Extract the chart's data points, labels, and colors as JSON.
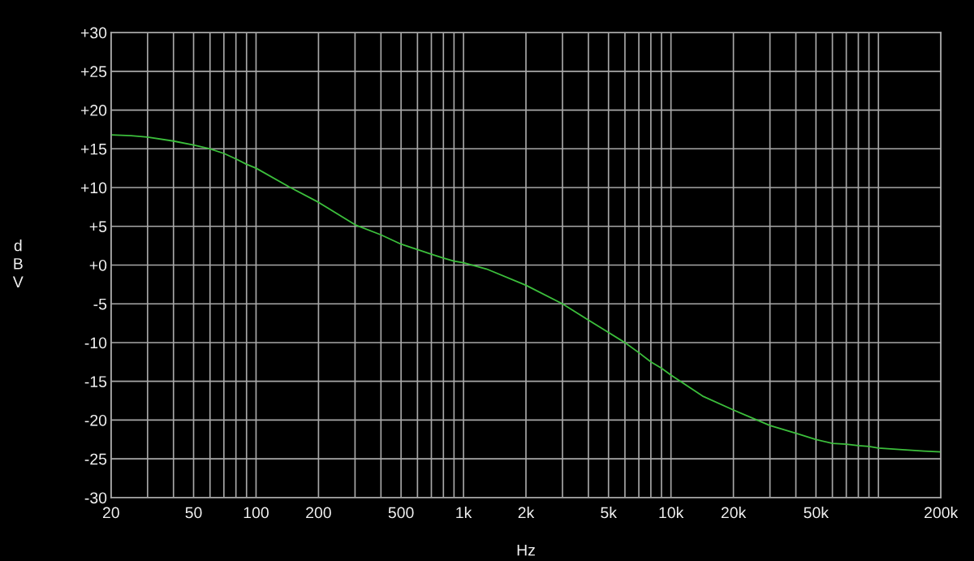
{
  "chart_data": {
    "type": "line",
    "xlabel": "Hz",
    "ylabel": "dBV",
    "log": "x",
    "grid": true,
    "line_style": "solid",
    "xlim": [
      20,
      200000
    ],
    "ylim": [
      -30,
      30
    ],
    "xticks": [
      20,
      {
        "value": 30,
        "label": null
      },
      {
        "value": 40,
        "label": null
      },
      50,
      {
        "value": 60,
        "label": null
      },
      {
        "value": 70,
        "label": null
      },
      {
        "value": 80,
        "label": null
      },
      {
        "value": 90,
        "label": null
      },
      100,
      200,
      {
        "value": 300,
        "label": null
      },
      {
        "value": 400,
        "label": null
      },
      500,
      {
        "value": 600,
        "label": null
      },
      {
        "value": 700,
        "label": null
      },
      {
        "value": 800,
        "label": null
      },
      {
        "value": 900,
        "label": null
      },
      {
        "value": 1000,
        "label": "1k"
      },
      {
        "value": 2000,
        "label": "2k"
      },
      {
        "value": 3000,
        "label": null
      },
      {
        "value": 4000,
        "label": null
      },
      {
        "value": 5000,
        "label": "5k"
      },
      {
        "value": 6000,
        "label": null
      },
      {
        "value": 7000,
        "label": null
      },
      {
        "value": 8000,
        "label": null
      },
      {
        "value": 9000,
        "label": null
      },
      {
        "value": 10000,
        "label": "10k"
      },
      {
        "value": 20000,
        "label": "20k"
      },
      {
        "value": 30000,
        "label": null
      },
      {
        "value": 40000,
        "label": null
      },
      {
        "value": 50000,
        "label": "50k"
      },
      {
        "value": 60000,
        "label": null
      },
      {
        "value": 70000,
        "label": null
      },
      {
        "value": 80000,
        "label": null
      },
      {
        "value": 90000,
        "label": null
      },
      {
        "value": 100000,
        "label": null
      },
      {
        "value": 200000,
        "label": "200k"
      }
    ],
    "yticks": [
      {
        "value": 30,
        "label": "+30"
      },
      {
        "value": 25,
        "label": "+25"
      },
      {
        "value": 20,
        "label": "+20"
      },
      {
        "value": 15,
        "label": "+15"
      },
      {
        "value": 10,
        "label": "+10"
      },
      {
        "value": 5,
        "label": "+5"
      },
      {
        "value": 0,
        "label": "+0"
      },
      -5,
      -10,
      -15,
      -20,
      -25,
      -30
    ],
    "x": [
      20,
      25,
      30,
      40,
      50,
      60,
      70,
      80,
      90,
      100,
      144,
      200,
      300,
      400,
      500,
      600,
      700,
      800,
      900,
      1000,
      1290,
      2000,
      3000,
      4000,
      5000,
      6000,
      7000,
      8000,
      9000,
      10000,
      14200,
      20000,
      30000,
      40000,
      50000,
      60000,
      70000,
      80000,
      90000,
      100000,
      126000,
      166000,
      200000
    ],
    "series": [
      {
        "color": "#3cbf3c",
        "values": [
          16.8,
          16.7,
          16.5,
          16.0,
          15.5,
          15.0,
          14.4,
          13.7,
          13.0,
          12.5,
          10.1,
          8.1,
          5.2,
          3.9,
          2.7,
          2.0,
          1.4,
          0.9,
          0.5,
          0.3,
          -0.5,
          -2.6,
          -5.0,
          -7.1,
          -8.7,
          -10.0,
          -11.3,
          -12.5,
          -13.3,
          -14.2,
          -16.9,
          -18.7,
          -20.7,
          -21.7,
          -22.5,
          -23.0,
          -23.1,
          -23.3,
          -23.4,
          -23.6,
          -23.8,
          -24.0,
          -24.1
        ]
      }
    ]
  }
}
